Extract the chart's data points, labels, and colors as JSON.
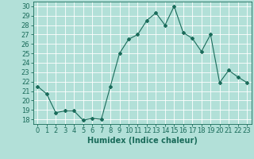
{
  "x": [
    0,
    1,
    2,
    3,
    4,
    5,
    6,
    7,
    8,
    9,
    10,
    11,
    12,
    13,
    14,
    15,
    16,
    17,
    18,
    19,
    20,
    21,
    22,
    23
  ],
  "y": [
    21.5,
    20.7,
    18.7,
    18.9,
    18.9,
    17.9,
    18.1,
    18.0,
    21.5,
    25.0,
    26.5,
    27.0,
    28.5,
    29.3,
    28.0,
    30.0,
    27.2,
    26.6,
    25.2,
    27.0,
    21.9,
    23.2,
    22.5,
    21.9
  ],
  "line_color": "#1a6b5a",
  "marker": "D",
  "marker_size": 2,
  "bg_color": "#b2e0d8",
  "grid_color": "#ffffff",
  "xlabel": "Humidex (Indice chaleur)",
  "xlim": [
    -0.5,
    23.5
  ],
  "ylim": [
    17.5,
    30.5
  ],
  "yticks": [
    18,
    19,
    20,
    21,
    22,
    23,
    24,
    25,
    26,
    27,
    28,
    29,
    30
  ],
  "xtick_labels": [
    "0",
    "1",
    "2",
    "3",
    "4",
    "5",
    "6",
    "7",
    "8",
    "9",
    "10",
    "11",
    "12",
    "13",
    "14",
    "15",
    "16",
    "17",
    "18",
    "19",
    "20",
    "21",
    "22",
    "23"
  ],
  "tick_color": "#1a6b5a",
  "label_fontsize": 6,
  "axis_color": "#1a6b5a"
}
